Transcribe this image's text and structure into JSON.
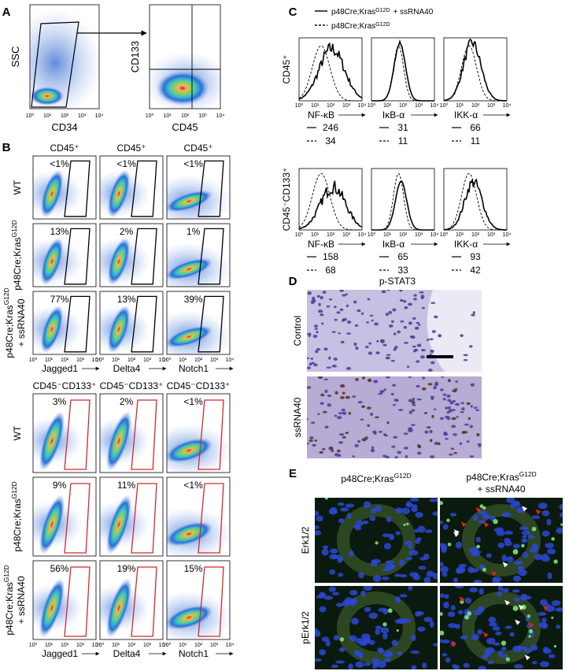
{
  "axis_ticks": [
    "10⁰",
    "10¹",
    "10²",
    "10³",
    "10⁴"
  ],
  "A": {
    "label": "A",
    "gating_plot": {
      "y_label": "SSC",
      "x_label": "CD34"
    },
    "quadrant_plot": {
      "y_label": "CD133",
      "x_label": "CD45"
    }
  },
  "B": {
    "label": "B",
    "x_labels": [
      "Jagged1",
      "Delta4",
      "Notch1"
    ],
    "row_labels": [
      {
        "base": "WT"
      },
      {
        "base": "p48Cre;Kras",
        "sup": "G12D"
      },
      {
        "base": "p48Cre;Kras",
        "sup": "G12D",
        "tail": "+ ssRNA40"
      }
    ],
    "blocks": [
      {
        "headers": [
          "CD45⁺",
          "CD45⁺",
          "CD45⁺"
        ],
        "percents": [
          [
            "<1%",
            "<1%",
            "<1%"
          ],
          [
            "13%",
            "2%",
            "1%"
          ],
          [
            "77%",
            "13%",
            "39%"
          ]
        ]
      },
      {
        "headers": [
          "CD45⁻CD133⁺",
          "CD45⁻CD133⁺",
          "CD45⁻CD133⁺"
        ],
        "percents": [
          [
            "3%",
            "2%",
            "<1%"
          ],
          [
            "9%",
            "11%",
            "<1%"
          ],
          [
            "56%",
            "19%",
            "15%"
          ]
        ]
      }
    ]
  },
  "C": {
    "label": "C",
    "legend": [
      {
        "base": "p48Cre;Kras",
        "sup": "G12D",
        "tail": "+ ssRNA40",
        "style": "solid"
      },
      {
        "base": "p48Cre;Kras",
        "sup": "G12D",
        "style": "dashed"
      }
    ],
    "x_labels": [
      "NF-κB",
      "IκB-α",
      "IKK-α"
    ],
    "rows": [
      {
        "label": "CD45⁺",
        "solid": [
          246,
          31,
          66
        ],
        "dashed": [
          34,
          11,
          11
        ]
      },
      {
        "label": "CD45⁻CD133⁺",
        "solid": [
          158,
          65,
          93
        ],
        "dashed": [
          68,
          33,
          42
        ]
      }
    ]
  },
  "D": {
    "label": "D",
    "title": "p-STAT3",
    "row_labels": [
      "Control",
      "ssRNA40"
    ]
  },
  "E": {
    "label": "E",
    "column_headers": [
      {
        "base": "p48Cre;Kras",
        "sup": "G12D"
      },
      {
        "base": "p48Cre;Kras",
        "sup": "G12D",
        "tail": "+ ssRNA40"
      }
    ],
    "row_labels": [
      "Erk1/2",
      "pErk1/2"
    ]
  }
}
